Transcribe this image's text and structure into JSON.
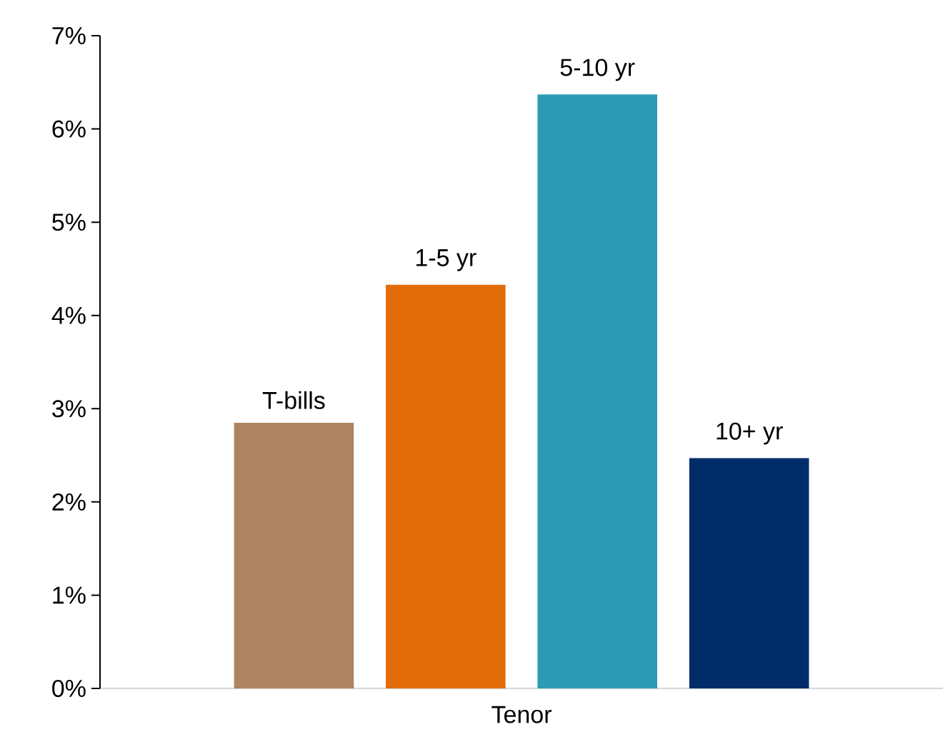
{
  "chart_data": {
    "type": "bar",
    "xlabel": "Tenor",
    "categories": [
      null
    ],
    "series": [
      {
        "name": "T-bills",
        "color": "#ae8462",
        "values": [
          2.85
        ]
      },
      {
        "name": "1-5 yr",
        "color": "#e36c0a",
        "values": [
          4.33
        ]
      },
      {
        "name": "5-10 yr",
        "color": "#2c9ab5",
        "values": [
          6.37
        ]
      },
      {
        "name": "10+ yr",
        "color": "#002d69",
        "values": [
          2.47
        ]
      }
    ],
    "ylim": [
      0,
      7
    ],
    "yticks": [
      {
        "value": 0,
        "label": "0%"
      },
      {
        "value": 1,
        "label": "1%"
      },
      {
        "value": 2,
        "label": "2%"
      },
      {
        "value": 3,
        "label": "3%"
      },
      {
        "value": 4,
        "label": "4%"
      },
      {
        "value": 5,
        "label": "5%"
      },
      {
        "value": 6,
        "label": "6%"
      },
      {
        "value": 7,
        "label": "7%"
      }
    ],
    "grid": false
  }
}
